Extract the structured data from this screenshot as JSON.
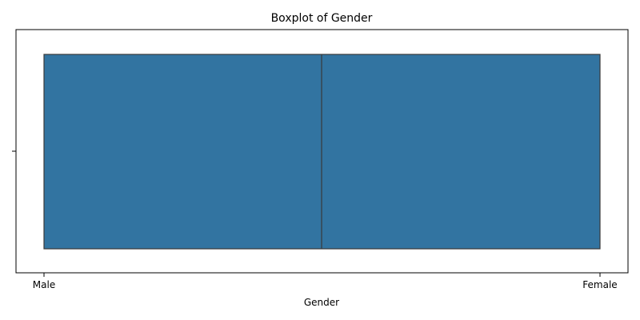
{
  "chart_data": {
    "type": "boxplot",
    "title": "Boxplot of Gender",
    "xlabel": "Gender",
    "ylabel": "",
    "categories": [
      "Male",
      "Female"
    ],
    "box": {
      "min": "Male",
      "q1": "Male",
      "median": "Male/Female midpoint",
      "q3": "Female",
      "max": "Female"
    },
    "orientation": "horizontal",
    "grid": false,
    "legend": "none",
    "colors": {
      "box_fill": "#3274a1",
      "box_edge": "#3a3a3a",
      "axis": "#000000",
      "background": "#ffffff"
    }
  }
}
